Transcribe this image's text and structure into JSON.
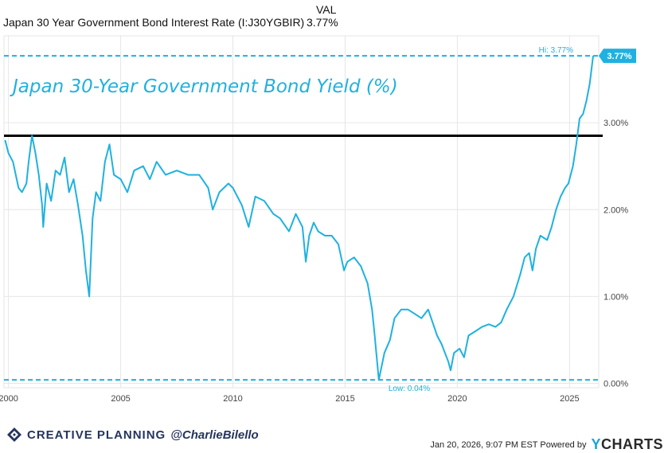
{
  "header": {
    "series_name": "Japan 30 Year Government Bond Interest Rate (I:J30YGBIR)",
    "val_label": "VAL",
    "val_value": "3.77%"
  },
  "chart_data": {
    "type": "line",
    "title": "Japan 30-Year Government Bond Yield (%)",
    "xlabel": "",
    "ylabel": "",
    "x_ticks": [
      "2000",
      "2005",
      "2010",
      "2015",
      "2020",
      "2025"
    ],
    "y_ticks": [
      "0.00%",
      "1.00%",
      "2.00%",
      "3.00%"
    ],
    "xlim": [
      1999.8,
      2026.3
    ],
    "ylim": [
      -0.05,
      4.0
    ],
    "series": [
      {
        "name": "Japan 30 Year Government Bond Interest Rate",
        "color": "#1fb1e0",
        "points": [
          [
            1999.85,
            2.8
          ],
          [
            2000.0,
            2.65
          ],
          [
            2000.2,
            2.55
          ],
          [
            2000.45,
            2.25
          ],
          [
            2000.6,
            2.2
          ],
          [
            2000.8,
            2.3
          ],
          [
            2000.9,
            2.55
          ],
          [
            2001.05,
            2.85
          ],
          [
            2001.2,
            2.65
          ],
          [
            2001.35,
            2.4
          ],
          [
            2001.5,
            2.05
          ],
          [
            2001.55,
            1.8
          ],
          [
            2001.7,
            2.3
          ],
          [
            2001.9,
            2.1
          ],
          [
            2002.1,
            2.45
          ],
          [
            2002.3,
            2.4
          ],
          [
            2002.5,
            2.6
          ],
          [
            2002.7,
            2.2
          ],
          [
            2002.9,
            2.35
          ],
          [
            2003.1,
            2.05
          ],
          [
            2003.3,
            1.7
          ],
          [
            2003.45,
            1.3
          ],
          [
            2003.6,
            1.0
          ],
          [
            2003.75,
            1.9
          ],
          [
            2003.9,
            2.2
          ],
          [
            2004.1,
            2.1
          ],
          [
            2004.3,
            2.55
          ],
          [
            2004.5,
            2.75
          ],
          [
            2004.7,
            2.4
          ],
          [
            2005.0,
            2.35
          ],
          [
            2005.3,
            2.2
          ],
          [
            2005.6,
            2.45
          ],
          [
            2006.0,
            2.5
          ],
          [
            2006.3,
            2.35
          ],
          [
            2006.6,
            2.55
          ],
          [
            2007.0,
            2.4
          ],
          [
            2007.5,
            2.45
          ],
          [
            2008.0,
            2.4
          ],
          [
            2008.5,
            2.4
          ],
          [
            2008.9,
            2.25
          ],
          [
            2009.1,
            2.0
          ],
          [
            2009.4,
            2.2
          ],
          [
            2009.8,
            2.3
          ],
          [
            2010.0,
            2.25
          ],
          [
            2010.4,
            2.05
          ],
          [
            2010.7,
            1.8
          ],
          [
            2011.0,
            2.15
          ],
          [
            2011.4,
            2.1
          ],
          [
            2011.8,
            1.95
          ],
          [
            2012.1,
            1.9
          ],
          [
            2012.5,
            1.75
          ],
          [
            2012.8,
            1.95
          ],
          [
            2013.1,
            1.8
          ],
          [
            2013.25,
            1.4
          ],
          [
            2013.4,
            1.7
          ],
          [
            2013.6,
            1.85
          ],
          [
            2013.8,
            1.75
          ],
          [
            2014.1,
            1.7
          ],
          [
            2014.4,
            1.7
          ],
          [
            2014.7,
            1.6
          ],
          [
            2014.95,
            1.3
          ],
          [
            2015.1,
            1.4
          ],
          [
            2015.4,
            1.45
          ],
          [
            2015.7,
            1.35
          ],
          [
            2016.0,
            1.15
          ],
          [
            2016.2,
            0.85
          ],
          [
            2016.3,
            0.6
          ],
          [
            2016.5,
            0.04
          ],
          [
            2016.75,
            0.35
          ],
          [
            2017.0,
            0.5
          ],
          [
            2017.2,
            0.75
          ],
          [
            2017.5,
            0.85
          ],
          [
            2017.8,
            0.85
          ],
          [
            2018.1,
            0.8
          ],
          [
            2018.4,
            0.75
          ],
          [
            2018.7,
            0.85
          ],
          [
            2018.9,
            0.7
          ],
          [
            2019.1,
            0.55
          ],
          [
            2019.3,
            0.45
          ],
          [
            2019.6,
            0.25
          ],
          [
            2019.7,
            0.15
          ],
          [
            2019.85,
            0.35
          ],
          [
            2020.1,
            0.4
          ],
          [
            2020.3,
            0.3
          ],
          [
            2020.5,
            0.55
          ],
          [
            2020.8,
            0.6
          ],
          [
            2021.1,
            0.65
          ],
          [
            2021.4,
            0.68
          ],
          [
            2021.7,
            0.65
          ],
          [
            2021.95,
            0.7
          ],
          [
            2022.2,
            0.85
          ],
          [
            2022.5,
            1.0
          ],
          [
            2022.8,
            1.25
          ],
          [
            2023.0,
            1.45
          ],
          [
            2023.2,
            1.5
          ],
          [
            2023.35,
            1.3
          ],
          [
            2023.5,
            1.55
          ],
          [
            2023.7,
            1.7
          ],
          [
            2024.0,
            1.65
          ],
          [
            2024.2,
            1.8
          ],
          [
            2024.4,
            2.0
          ],
          [
            2024.6,
            2.15
          ],
          [
            2024.8,
            2.25
          ],
          [
            2024.95,
            2.3
          ],
          [
            2025.15,
            2.5
          ],
          [
            2025.3,
            2.75
          ],
          [
            2025.45,
            3.05
          ],
          [
            2025.6,
            3.1
          ],
          [
            2025.75,
            3.25
          ],
          [
            2025.9,
            3.45
          ],
          [
            2026.05,
            3.77
          ]
        ]
      }
    ],
    "reference_lines": [
      {
        "label": "Hi: 3.77%",
        "value": 3.77,
        "color": "#1fb1e0",
        "style": "dashed"
      },
      {
        "label": "Low: 0.04%",
        "value": 0.04,
        "color": "#1fb1e0",
        "style": "dashed"
      },
      {
        "label": "",
        "value": 2.85,
        "color": "#000000",
        "style": "solid"
      }
    ],
    "last_value_label": "3.77%",
    "grid": true
  },
  "footer": {
    "brand": "CREATIVE PLANNING",
    "handle": "@CharlieBilello",
    "timestamp": "Jan 20, 2026, 9:07 PM EST Powered by",
    "ycharts_y": "Y",
    "ycharts_rest": "CHARTS"
  }
}
